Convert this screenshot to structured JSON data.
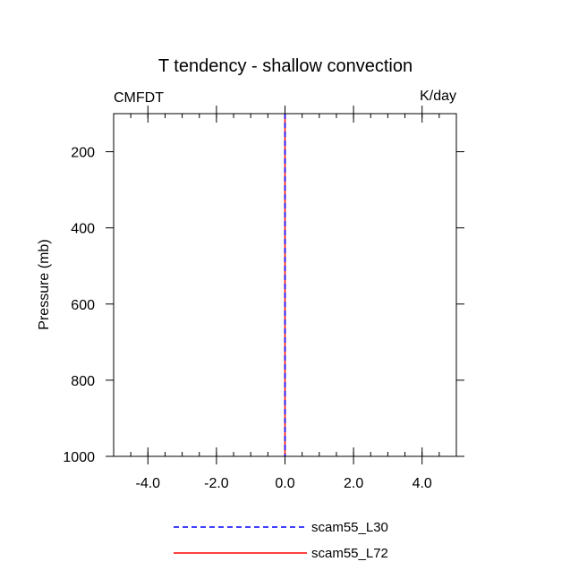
{
  "chart_data": {
    "type": "line",
    "title": "T tendency - shallow convection",
    "left_string": "CMFDT",
    "right_string": "K/day",
    "xlabel": "",
    "ylabel": "Pressure (mb)",
    "xlim": [
      -5,
      5
    ],
    "ylim": [
      100,
      1000
    ],
    "y_reversed": true,
    "x_ticks": [
      -4.0,
      -2.0,
      0.0,
      2.0,
      4.0
    ],
    "x_tick_labels": [
      "-4.0",
      "-2.0",
      "0.0",
      "2.0",
      "4.0"
    ],
    "y_ticks": [
      200,
      400,
      600,
      800,
      1000
    ],
    "y_tick_labels": [
      "200",
      "400",
      "600",
      "800",
      "1000"
    ],
    "grid": false,
    "legend_position": "bottom",
    "series": [
      {
        "name": "scam55_L30",
        "color": "#0000ff",
        "dash": "dashed",
        "x": [
          0,
          0
        ],
        "y": [
          100,
          1000
        ]
      },
      {
        "name": "scam55_L72",
        "color": "#ff0000",
        "dash": "solid",
        "x": [
          0,
          0
        ],
        "y": [
          100,
          1000
        ]
      }
    ]
  }
}
